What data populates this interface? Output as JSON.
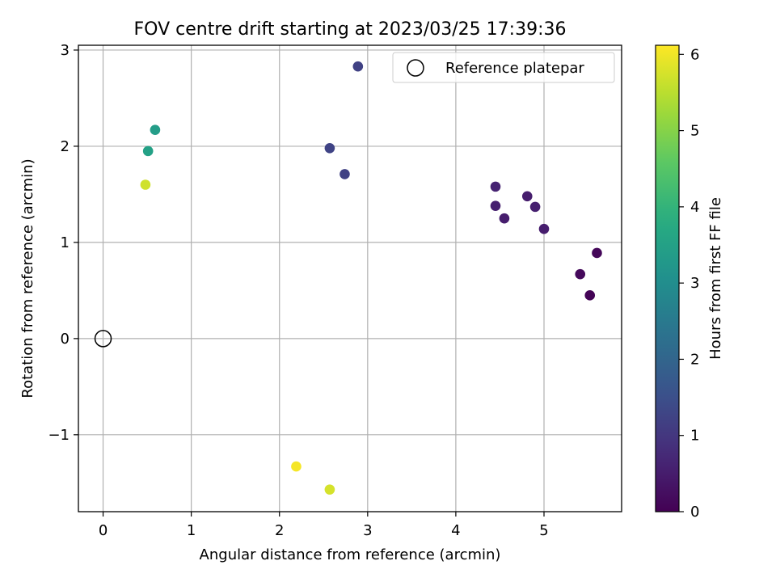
{
  "chart_data": {
    "type": "scatter",
    "title": "FOV centre drift starting at 2023/03/25 17:39:36",
    "xlabel": "Angular distance from reference (arcmin)",
    "ylabel": "Rotation from reference (arcmin)",
    "xlim": [
      -0.28,
      5.88
    ],
    "ylim": [
      -1.8,
      3.05
    ],
    "xticks": [
      0,
      1,
      2,
      3,
      4,
      5
    ],
    "yticks": [
      -1,
      0,
      1,
      2,
      3
    ],
    "xtick_labels": [
      "0",
      "1",
      "2",
      "3",
      "4",
      "5"
    ],
    "ytick_labels": [
      "−1",
      "0",
      "1",
      "2",
      "3"
    ],
    "grid": true,
    "legend": {
      "position": "top-right",
      "entries": [
        "Reference platepar"
      ]
    },
    "reference_point": {
      "x": 0,
      "y": 0
    },
    "colorbar": {
      "label": "Hours from first FF file",
      "min": 0,
      "max": 6.12,
      "ticks": [
        0,
        1,
        2,
        3,
        4,
        5,
        6
      ],
      "tick_labels": [
        "0",
        "1",
        "2",
        "3",
        "4",
        "5",
        "6"
      ],
      "colormap": "viridis"
    },
    "points": [
      {
        "x": 5.52,
        "y": 0.45,
        "hours": 0.05
      },
      {
        "x": 5.41,
        "y": 0.67,
        "hours": 0.15
      },
      {
        "x": 5.6,
        "y": 0.89,
        "hours": 0.1
      },
      {
        "x": 5.0,
        "y": 1.14,
        "hours": 0.5
      },
      {
        "x": 4.9,
        "y": 1.37,
        "hours": 0.55
      },
      {
        "x": 4.81,
        "y": 1.48,
        "hours": 0.5
      },
      {
        "x": 4.55,
        "y": 1.25,
        "hours": 0.5
      },
      {
        "x": 4.45,
        "y": 1.38,
        "hours": 0.55
      },
      {
        "x": 4.45,
        "y": 1.58,
        "hours": 0.6
      },
      {
        "x": 2.74,
        "y": 1.71,
        "hours": 1.2
      },
      {
        "x": 2.57,
        "y": 1.98,
        "hours": 1.25
      },
      {
        "x": 2.89,
        "y": 2.83,
        "hours": 1.2
      },
      {
        "x": 0.59,
        "y": 2.17,
        "hours": 3.4
      },
      {
        "x": 0.51,
        "y": 1.95,
        "hours": 3.5
      },
      {
        "x": 0.48,
        "y": 1.6,
        "hours": 5.7
      },
      {
        "x": 2.19,
        "y": -1.33,
        "hours": 6.05
      },
      {
        "x": 2.57,
        "y": -1.57,
        "hours": 5.75
      }
    ]
  }
}
